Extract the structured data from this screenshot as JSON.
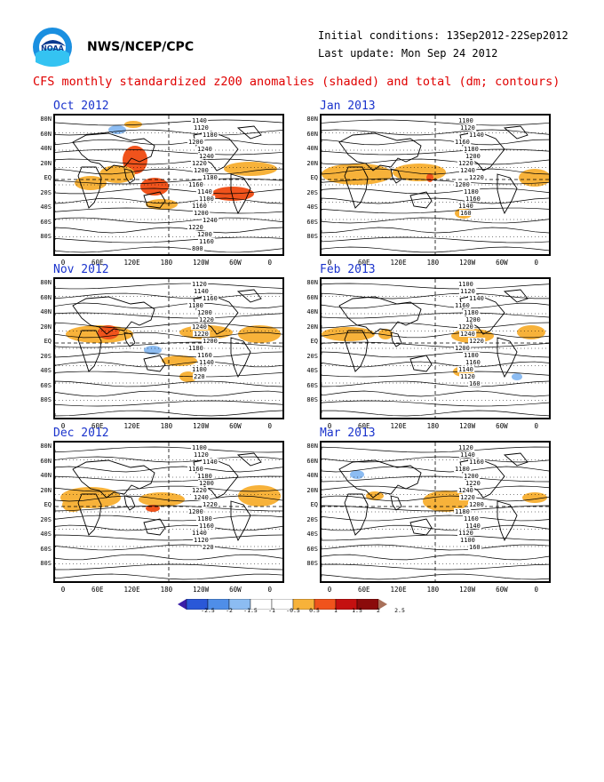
{
  "header": {
    "org": "NWS/NCEP/CPC",
    "logo_text": "NOAA",
    "initial_conditions": "Initial conditions: 13Sep2012-22Sep2012",
    "last_update": "Last update: Mon Sep 24 2012",
    "subtitle": "CFS monthly standardized z200 anomalies (shaded) and total (dm; contours)"
  },
  "lat_labels": [
    "80N",
    "60N",
    "40N",
    "20N",
    "EQ",
    "20S",
    "40S",
    "60S",
    "80S"
  ],
  "lon_labels": [
    "0",
    "60E",
    "120E",
    "180",
    "120W",
    "60W",
    "0"
  ],
  "panels": [
    {
      "title": "Oct 2012",
      "contours": [
        "1140",
        "1120",
        "1180",
        "1200",
        "1240",
        "1240",
        "1220",
        "1200",
        "1180",
        "1160",
        "1140",
        "1100",
        "1160",
        "1200",
        "1240",
        "1220",
        "1200",
        "1160",
        "800"
      ]
    },
    {
      "title": "Nov 2012",
      "contours": [
        "1120",
        "1140",
        "1160",
        "1180",
        "1200",
        "1220",
        "1240",
        "1220",
        "1200",
        "1180",
        "1160",
        "1140",
        "1100",
        "220"
      ]
    },
    {
      "title": "Dec 2012",
      "contours": [
        "1100",
        "1120",
        "1140",
        "1160",
        "1180",
        "1200",
        "1220",
        "1240",
        "1220",
        "1200",
        "1180",
        "1160",
        "1140",
        "1120",
        "220"
      ]
    },
    {
      "title": "Jan 2013",
      "contours": [
        "1100",
        "1120",
        "1140",
        "1160",
        "1180",
        "1200",
        "1220",
        "1240",
        "1220",
        "1200",
        "1180",
        "1160",
        "1140",
        "160"
      ]
    },
    {
      "title": "Feb 2013",
      "contours": [
        "1100",
        "1120",
        "1140",
        "1160",
        "1180",
        "1200",
        "1220",
        "1240",
        "1220",
        "1200",
        "1180",
        "1160",
        "1140",
        "1120",
        "160"
      ]
    },
    {
      "title": "Mar 2013",
      "contours": [
        "1120",
        "1140",
        "1160",
        "1180",
        "1200",
        "1220",
        "1240",
        "1220",
        "1200",
        "1180",
        "1160",
        "1140",
        "1120",
        "1100",
        "160"
      ]
    }
  ],
  "colorbar": {
    "labels": [
      "-2.5",
      "-2",
      "-1.5",
      "-1",
      "-0.5",
      "0.5",
      "1",
      "1.5",
      "2",
      "2.5"
    ],
    "colors": [
      "#3a1fa8",
      "#2a58d8",
      "#4f8ee8",
      "#8cbcf2",
      "#ffffff",
      "#ffffff",
      "#f7b23a",
      "#f0531c",
      "#c41010",
      "#8b0b0b",
      "#a8705a"
    ]
  },
  "colors": {
    "title_red": "#e00000",
    "panel_title_blue": "#1a33cc",
    "pos_light": "#f7b23a",
    "pos_mid": "#f0531c",
    "neg_light": "#8cbcf2"
  }
}
